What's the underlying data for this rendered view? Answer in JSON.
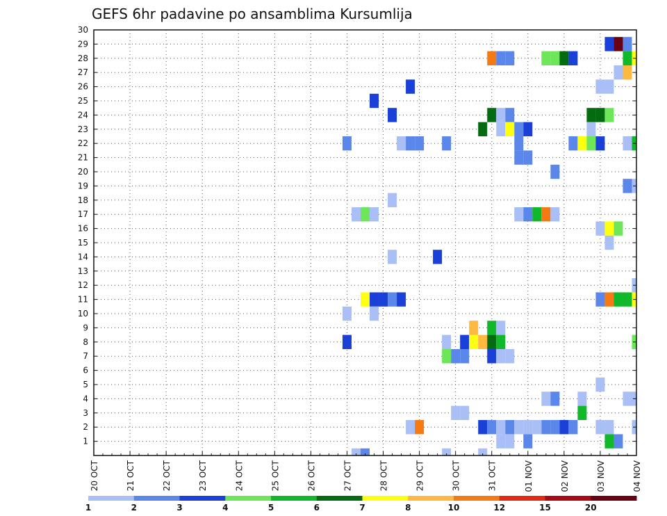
{
  "chart_data": {
    "type": "heatmap",
    "title": "GEFS 6hr padavine po ansamblima Kursumlija",
    "xlabel": "",
    "ylabel": "",
    "x_ticks": [
      "20 OCT",
      "21 OCT",
      "22 OCT",
      "23 OCT",
      "24 OCT",
      "25 OCT",
      "26 OCT",
      "27 OCT",
      "28 OCT",
      "29 OCT",
      "30 OCT",
      "31 OCT",
      "01 NOV",
      "02 NOV",
      "03 NOV",
      "04 NOV"
    ],
    "y_ticks": [
      "1",
      "2",
      "3",
      "4",
      "5",
      "6",
      "7",
      "8",
      "9",
      "10",
      "11",
      "12",
      "13",
      "14",
      "15",
      "16",
      "17",
      "18",
      "19",
      "20",
      "21",
      "22",
      "23",
      "24",
      "25",
      "26",
      "27",
      "28",
      "29",
      "30"
    ],
    "xlim": [
      0,
      60
    ],
    "ylim": [
      0,
      30
    ],
    "grid": true,
    "levels": [
      1,
      2,
      3,
      4,
      5,
      6,
      7,
      8,
      10,
      12,
      15,
      20
    ],
    "level_labels": [
      "1",
      "2",
      "3",
      "4",
      "5",
      "6",
      "7",
      "8",
      "10",
      "12",
      "15",
      "20"
    ],
    "colors": [
      "#aabff5",
      "#5c87ea",
      "#1a40d8",
      "#6ee65a",
      "#10b82a",
      "#056b10",
      "#ffff10",
      "#ffb840",
      "#f57a14",
      "#e02a14",
      "#a80a14",
      "#6b0012"
    ],
    "cells": [
      [
        57,
        29,
        2
      ],
      [
        58,
        29,
        11
      ],
      [
        59,
        29,
        1
      ],
      [
        44,
        28,
        8
      ],
      [
        45,
        28,
        1
      ],
      [
        46,
        28,
        1
      ],
      [
        50,
        28,
        3
      ],
      [
        51,
        28,
        3
      ],
      [
        52,
        28,
        5
      ],
      [
        53,
        28,
        2
      ],
      [
        59,
        28,
        4
      ],
      [
        60,
        28,
        6
      ],
      [
        58,
        27,
        0
      ],
      [
        59,
        27,
        7
      ],
      [
        35,
        26,
        2
      ],
      [
        56,
        26,
        0
      ],
      [
        57,
        26,
        0
      ],
      [
        31,
        25,
        2
      ],
      [
        33,
        24,
        2
      ],
      [
        44,
        24,
        5
      ],
      [
        45,
        24,
        0
      ],
      [
        46,
        24,
        1
      ],
      [
        55,
        24,
        5
      ],
      [
        56,
        24,
        5
      ],
      [
        57,
        24,
        3
      ],
      [
        43,
        23,
        5
      ],
      [
        45,
        23,
        0
      ],
      [
        46,
        23,
        6
      ],
      [
        47,
        23,
        1
      ],
      [
        48,
        23,
        2
      ],
      [
        55,
        23,
        0
      ],
      [
        28,
        22,
        1
      ],
      [
        34,
        22,
        0
      ],
      [
        35,
        22,
        1
      ],
      [
        36,
        22,
        1
      ],
      [
        39,
        22,
        1
      ],
      [
        47,
        22,
        1
      ],
      [
        53,
        22,
        1
      ],
      [
        54,
        22,
        6
      ],
      [
        55,
        22,
        3
      ],
      [
        56,
        22,
        2
      ],
      [
        59,
        22,
        0
      ],
      [
        60,
        22,
        4
      ],
      [
        47,
        21,
        1
      ],
      [
        48,
        21,
        1
      ],
      [
        51,
        20,
        1
      ],
      [
        59,
        19,
        1
      ],
      [
        60,
        19,
        0
      ],
      [
        33,
        18,
        0
      ],
      [
        29,
        17,
        0
      ],
      [
        30,
        17,
        3
      ],
      [
        31,
        17,
        0
      ],
      [
        47,
        17,
        0
      ],
      [
        48,
        17,
        1
      ],
      [
        49,
        17,
        4
      ],
      [
        50,
        17,
        8
      ],
      [
        51,
        17,
        0
      ],
      [
        56,
        16,
        0
      ],
      [
        57,
        16,
        6
      ],
      [
        58,
        16,
        3
      ],
      [
        57,
        15,
        0
      ],
      [
        33,
        14,
        0
      ],
      [
        38,
        14,
        2
      ],
      [
        60,
        12,
        0
      ],
      [
        30,
        11,
        6
      ],
      [
        31,
        11,
        2
      ],
      [
        32,
        11,
        2
      ],
      [
        33,
        11,
        1
      ],
      [
        34,
        11,
        2
      ],
      [
        56,
        11,
        1
      ],
      [
        57,
        11,
        8
      ],
      [
        58,
        11,
        4
      ],
      [
        59,
        11,
        4
      ],
      [
        60,
        11,
        6
      ],
      [
        28,
        10,
        0
      ],
      [
        31,
        10,
        0
      ],
      [
        42,
        9,
        7
      ],
      [
        44,
        9,
        4
      ],
      [
        45,
        9,
        0
      ],
      [
        28,
        8,
        2
      ],
      [
        39,
        8,
        0
      ],
      [
        41,
        8,
        2
      ],
      [
        42,
        8,
        6
      ],
      [
        43,
        8,
        7
      ],
      [
        44,
        8,
        5
      ],
      [
        45,
        8,
        4
      ],
      [
        60,
        8,
        3
      ],
      [
        39,
        7,
        3
      ],
      [
        40,
        7,
        1
      ],
      [
        41,
        7,
        1
      ],
      [
        44,
        7,
        2
      ],
      [
        45,
        7,
        0
      ],
      [
        46,
        7,
        0
      ],
      [
        56,
        5,
        0
      ],
      [
        50,
        4,
        0
      ],
      [
        51,
        4,
        1
      ],
      [
        54,
        4,
        0
      ],
      [
        59,
        4,
        0
      ],
      [
        60,
        4,
        0
      ],
      [
        40,
        3,
        0
      ],
      [
        41,
        3,
        0
      ],
      [
        54,
        3,
        4
      ],
      [
        35,
        2,
        0
      ],
      [
        36,
        2,
        8
      ],
      [
        43,
        2,
        2
      ],
      [
        44,
        2,
        1
      ],
      [
        45,
        2,
        0
      ],
      [
        46,
        2,
        1
      ],
      [
        47,
        2,
        0
      ],
      [
        48,
        2,
        0
      ],
      [
        49,
        2,
        0
      ],
      [
        50,
        2,
        1
      ],
      [
        51,
        2,
        1
      ],
      [
        52,
        2,
        2
      ],
      [
        53,
        2,
        1
      ],
      [
        56,
        2,
        0
      ],
      [
        57,
        2,
        0
      ],
      [
        60,
        2,
        0
      ],
      [
        45,
        1,
        0
      ],
      [
        46,
        1,
        0
      ],
      [
        48,
        1,
        1
      ],
      [
        57,
        1,
        4
      ],
      [
        58,
        1,
        1
      ],
      [
        29,
        0,
        0
      ],
      [
        30,
        0,
        1
      ],
      [
        39,
        0,
        0
      ],
      [
        43,
        0,
        0
      ]
    ]
  }
}
